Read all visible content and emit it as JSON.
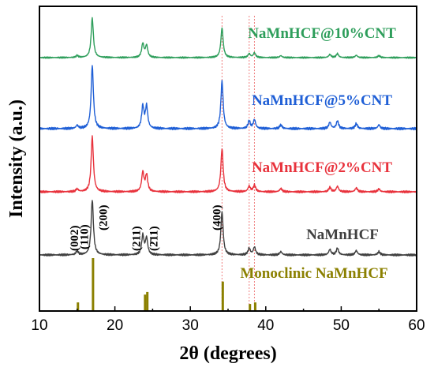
{
  "chart_data": {
    "type": "line",
    "xlabel": "2θ (degrees)",
    "ylabel": "Intensity (a.u.)",
    "xlim": [
      10,
      60
    ],
    "xticks": [
      "10",
      "20",
      "30",
      "40",
      "50",
      "60"
    ],
    "series": [
      {
        "name": "NaMnHCF@10%CNT",
        "color": "#2e9e5b",
        "peaks": [
          [
            15.0,
            0.05
          ],
          [
            17.0,
            1.0
          ],
          [
            23.7,
            0.35
          ],
          [
            24.2,
            0.3
          ],
          [
            34.2,
            0.75
          ],
          [
            37.8,
            0.1
          ],
          [
            38.5,
            0.12
          ],
          [
            42.0,
            0.05
          ],
          [
            48.5,
            0.08
          ],
          [
            49.5,
            0.1
          ],
          [
            52.0,
            0.06
          ],
          [
            55.0,
            0.05
          ]
        ]
      },
      {
        "name": "NaMnHCF@5%CNT",
        "color": "#1f5fd6",
        "peaks": [
          [
            15.0,
            0.05
          ],
          [
            17.0,
            1.0
          ],
          [
            23.7,
            0.35
          ],
          [
            24.2,
            0.35
          ],
          [
            34.2,
            0.75
          ],
          [
            37.8,
            0.12
          ],
          [
            38.5,
            0.14
          ],
          [
            42.0,
            0.06
          ],
          [
            48.5,
            0.1
          ],
          [
            49.5,
            0.12
          ],
          [
            52.0,
            0.08
          ],
          [
            55.0,
            0.06
          ]
        ]
      },
      {
        "name": "NaMnHCF@2%CNT",
        "color": "#e8323c",
        "peaks": [
          [
            15.0,
            0.05
          ],
          [
            17.0,
            1.0
          ],
          [
            23.7,
            0.35
          ],
          [
            24.2,
            0.3
          ],
          [
            34.2,
            0.78
          ],
          [
            37.8,
            0.1
          ],
          [
            38.5,
            0.12
          ],
          [
            42.0,
            0.06
          ],
          [
            48.5,
            0.08
          ],
          [
            49.5,
            0.1
          ],
          [
            52.0,
            0.07
          ],
          [
            55.0,
            0.05
          ]
        ]
      },
      {
        "name": "NaMnHCF",
        "color": "#404040",
        "peaks": [
          [
            15.0,
            0.07
          ],
          [
            17.0,
            1.0
          ],
          [
            23.7,
            0.35
          ],
          [
            24.2,
            0.3
          ],
          [
            34.2,
            0.78
          ],
          [
            37.8,
            0.12
          ],
          [
            38.5,
            0.14
          ],
          [
            42.0,
            0.06
          ],
          [
            48.5,
            0.1
          ],
          [
            49.5,
            0.12
          ],
          [
            52.0,
            0.08
          ],
          [
            55.0,
            0.06
          ]
        ]
      }
    ],
    "reference": {
      "name": "Monoclinic NaMnHCF",
      "color": "#8b8000",
      "sticks": [
        [
          15.1,
          0.15
        ],
        [
          17.1,
          1.0
        ],
        [
          24.0,
          0.3
        ],
        [
          24.3,
          0.35
        ],
        [
          34.3,
          0.55
        ],
        [
          37.9,
          0.12
        ],
        [
          38.6,
          0.15
        ]
      ]
    },
    "peak_labels": [
      {
        "text": "(002)",
        "x": 14.6
      },
      {
        "text": "(110)",
        "x": 15.9
      },
      {
        "text": "(200)",
        "x": 18.4
      },
      {
        "text": "(211)",
        "x": 22.8
      },
      {
        "text": "(2̄11)",
        "x": 25.1
      },
      {
        "text": "(400)",
        "x": 33.5
      }
    ],
    "guide_lines": [
      34.2,
      37.8,
      38.5
    ]
  }
}
